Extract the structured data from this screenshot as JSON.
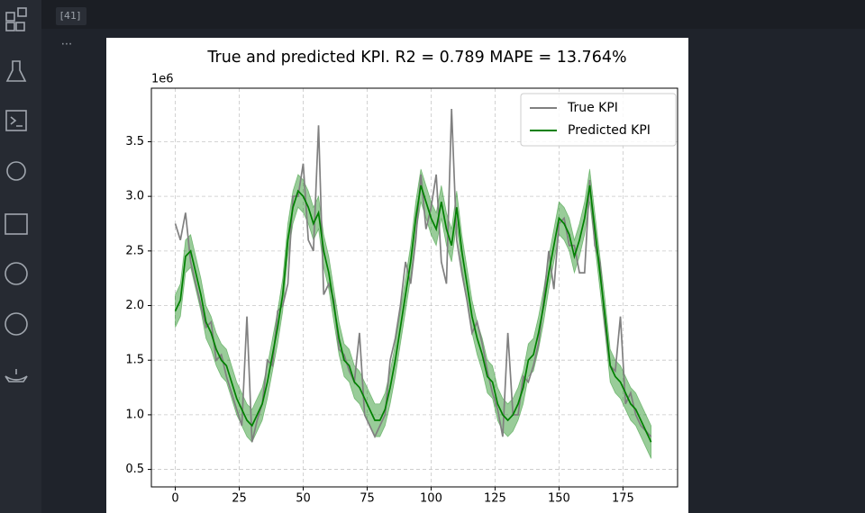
{
  "cell": {
    "execution_count": "[41]",
    "more": "···"
  },
  "chart_data": {
    "type": "line",
    "title": "True and predicted KPI. R2 = 0.789 MAPE = 13.764%",
    "y_offset_label": "1e6",
    "x": [
      0,
      2,
      4,
      6,
      8,
      10,
      12,
      14,
      16,
      18,
      20,
      22,
      24,
      26,
      28,
      30,
      32,
      34,
      36,
      38,
      40,
      42,
      44,
      46,
      48,
      50,
      52,
      54,
      56,
      58,
      60,
      62,
      64,
      66,
      68,
      70,
      72,
      74,
      76,
      78,
      80,
      82,
      84,
      86,
      88,
      90,
      92,
      94,
      96,
      98,
      100,
      102,
      104,
      106,
      108,
      110,
      112,
      114,
      116,
      118,
      120,
      122,
      124,
      126,
      128,
      130,
      132,
      134,
      136,
      138,
      140,
      142,
      144,
      146,
      148,
      150,
      152,
      154,
      156,
      158,
      160,
      162,
      164,
      166,
      168,
      170,
      172,
      174,
      176,
      178,
      180,
      182,
      184,
      186
    ],
    "series": [
      {
        "name": "True KPI",
        "color": "#808080",
        "values": [
          2.75,
          2.6,
          2.85,
          2.4,
          2.2,
          2.0,
          1.8,
          1.85,
          1.5,
          1.55,
          1.35,
          1.2,
          1.05,
          0.9,
          1.9,
          0.75,
          0.95,
          1.1,
          1.5,
          1.45,
          1.95,
          2.0,
          2.2,
          3.0,
          3.0,
          3.3,
          2.6,
          2.5,
          3.65,
          2.1,
          2.2,
          2.05,
          1.6,
          1.55,
          1.4,
          1.3,
          1.75,
          1.0,
          0.9,
          0.8,
          0.9,
          1.0,
          1.5,
          1.7,
          2.0,
          2.4,
          2.2,
          2.6,
          3.2,
          2.7,
          2.9,
          3.2,
          2.4,
          2.2,
          3.8,
          2.6,
          2.3,
          2.05,
          1.75,
          1.85,
          1.65,
          1.4,
          1.2,
          1.05,
          0.8,
          1.75,
          1.0,
          1.0,
          1.35,
          1.3,
          1.45,
          1.65,
          2.05,
          2.5,
          2.15,
          2.75,
          2.8,
          2.55,
          2.55,
          2.3,
          2.3,
          3.15,
          2.55,
          2.4,
          1.8,
          1.45,
          1.4,
          1.9,
          1.1,
          1.2,
          1.0,
          0.9,
          0.85,
          0.8
        ]
      },
      {
        "name": "Predicted KPI",
        "color": "#008000",
        "values": [
          1.95,
          2.05,
          2.45,
          2.5,
          2.3,
          2.1,
          1.85,
          1.75,
          1.6,
          1.5,
          1.45,
          1.3,
          1.15,
          1.05,
          0.95,
          0.9,
          1.0,
          1.1,
          1.3,
          1.55,
          1.8,
          2.1,
          2.6,
          2.9,
          3.05,
          3.0,
          2.9,
          2.75,
          2.85,
          2.5,
          2.3,
          2.0,
          1.7,
          1.5,
          1.45,
          1.3,
          1.25,
          1.15,
          1.05,
          0.95,
          0.95,
          1.05,
          1.25,
          1.5,
          1.8,
          2.1,
          2.4,
          2.8,
          3.1,
          2.95,
          2.8,
          2.7,
          2.95,
          2.7,
          2.55,
          2.9,
          2.5,
          2.2,
          1.9,
          1.7,
          1.55,
          1.35,
          1.3,
          1.1,
          1.0,
          0.95,
          1.0,
          1.1,
          1.25,
          1.5,
          1.55,
          1.75,
          2.0,
          2.3,
          2.55,
          2.8,
          2.75,
          2.65,
          2.45,
          2.6,
          2.8,
          3.1,
          2.7,
          2.3,
          1.9,
          1.45,
          1.35,
          1.3,
          1.2,
          1.1,
          1.05,
          0.95,
          0.85,
          0.75
        ]
      }
    ],
    "band": {
      "color": "#008000",
      "upper": [
        2.1,
        2.2,
        2.6,
        2.65,
        2.45,
        2.25,
        2.0,
        1.9,
        1.75,
        1.65,
        1.6,
        1.45,
        1.3,
        1.2,
        1.1,
        1.05,
        1.15,
        1.25,
        1.45,
        1.7,
        1.95,
        2.25,
        2.75,
        3.05,
        3.2,
        3.15,
        3.05,
        2.9,
        3.0,
        2.65,
        2.45,
        2.15,
        1.85,
        1.65,
        1.6,
        1.45,
        1.4,
        1.3,
        1.2,
        1.1,
        1.1,
        1.2,
        1.4,
        1.65,
        1.95,
        2.25,
        2.55,
        2.95,
        3.25,
        3.1,
        2.95,
        2.85,
        3.1,
        2.85,
        2.7,
        3.05,
        2.65,
        2.35,
        2.05,
        1.85,
        1.7,
        1.5,
        1.45,
        1.25,
        1.15,
        1.1,
        1.15,
        1.25,
        1.4,
        1.65,
        1.7,
        1.9,
        2.15,
        2.45,
        2.7,
        2.95,
        2.9,
        2.8,
        2.6,
        2.75,
        2.95,
        3.25,
        2.85,
        2.45,
        2.05,
        1.6,
        1.5,
        1.45,
        1.35,
        1.25,
        1.2,
        1.1,
        1.0,
        0.9
      ],
      "lower": [
        1.8,
        1.9,
        2.3,
        2.35,
        2.15,
        1.95,
        1.7,
        1.6,
        1.45,
        1.35,
        1.3,
        1.15,
        1.0,
        0.9,
        0.8,
        0.75,
        0.85,
        0.95,
        1.15,
        1.4,
        1.65,
        1.95,
        2.45,
        2.75,
        2.9,
        2.85,
        2.75,
        2.6,
        2.7,
        2.35,
        2.15,
        1.85,
        1.55,
        1.35,
        1.3,
        1.15,
        1.1,
        1.0,
        0.9,
        0.8,
        0.8,
        0.9,
        1.1,
        1.35,
        1.65,
        1.95,
        2.25,
        2.65,
        2.95,
        2.8,
        2.65,
        2.55,
        2.8,
        2.55,
        2.4,
        2.75,
        2.35,
        2.05,
        1.75,
        1.55,
        1.4,
        1.2,
        1.15,
        0.95,
        0.85,
        0.8,
        0.85,
        0.95,
        1.1,
        1.35,
        1.4,
        1.6,
        1.85,
        2.15,
        2.4,
        2.65,
        2.6,
        2.5,
        2.3,
        2.45,
        2.65,
        2.95,
        2.55,
        2.15,
        1.75,
        1.3,
        1.2,
        1.15,
        1.05,
        0.95,
        0.9,
        0.8,
        0.7,
        0.6
      ]
    },
    "xlim": [
      -9.35,
      196.35
    ],
    "ylim": [
      0.34,
      3.99
    ],
    "xticks": [
      0,
      25,
      50,
      75,
      100,
      125,
      150,
      175
    ],
    "yticks": [
      0.5,
      {
        "value": 1,
        "label": "1.0"
      },
      1.5,
      {
        "value": 2,
        "label": "2.0"
      },
      2.5,
      {
        "value": 3,
        "label": "3.0"
      },
      3.5
    ],
    "grid": true,
    "legend": "upper right"
  }
}
